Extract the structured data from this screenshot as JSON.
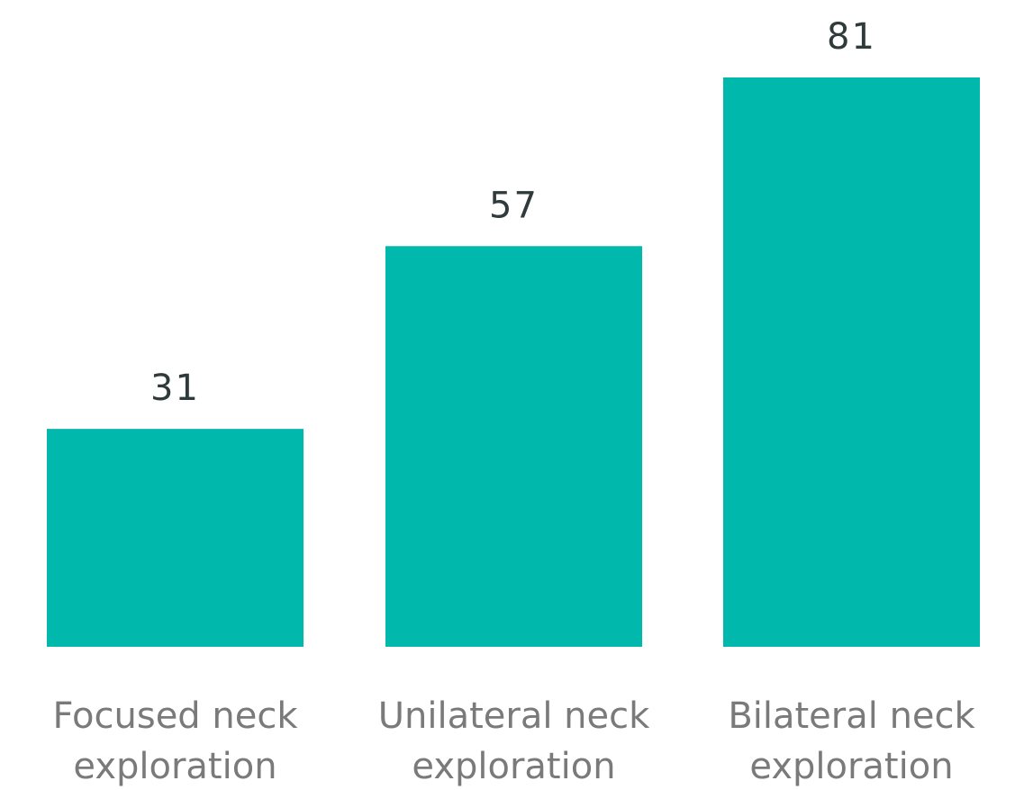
{
  "chart_data": {
    "type": "bar",
    "title": "",
    "xlabel": "",
    "ylabel": "",
    "ylim": [
      0,
      81
    ],
    "grid": false,
    "legend": "none",
    "bar_color": "#00b8ac",
    "categories": [
      [
        "Focused neck",
        "exploration"
      ],
      [
        "Unilateral neck",
        "exploration"
      ],
      [
        "Bilateral neck",
        "exploration"
      ]
    ],
    "values": [
      31,
      57,
      81
    ],
    "data_labels": [
      "31",
      "57",
      "81"
    ]
  }
}
